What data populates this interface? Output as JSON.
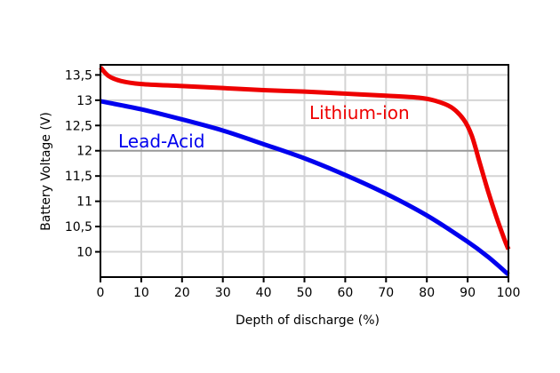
{
  "chart_data": {
    "type": "line",
    "title": "",
    "xlabel": "Depth of discharge (%)",
    "ylabel": "Battery Voltage (V)",
    "xlim": [
      0,
      100
    ],
    "ylim": [
      9.5,
      13.7
    ],
    "x_ticks": [
      0,
      10,
      20,
      30,
      40,
      50,
      60,
      70,
      80,
      90,
      100
    ],
    "x_tick_labels": [
      "0",
      "10",
      "20",
      "30",
      "40",
      "50",
      "60",
      "70",
      "80",
      "90",
      "100"
    ],
    "y_ticks": [
      10,
      10.5,
      11,
      11.5,
      12,
      12.5,
      13,
      13.5
    ],
    "y_tick_labels": [
      "10",
      "10,5",
      "11",
      "11,5",
      "12",
      "12,5",
      "13",
      "13,5"
    ],
    "grid": true,
    "reference_line": 12,
    "series": [
      {
        "name": "Lithium-ion",
        "color": "#ee0000",
        "x": [
          0,
          2,
          5,
          10,
          20,
          30,
          40,
          50,
          60,
          70,
          78,
          82,
          86,
          89,
          91,
          93,
          95,
          97,
          99,
          100
        ],
        "y": [
          13.65,
          13.48,
          13.38,
          13.32,
          13.28,
          13.24,
          13.2,
          13.17,
          13.13,
          13.09,
          13.05,
          12.99,
          12.86,
          12.62,
          12.3,
          11.75,
          11.2,
          10.7,
          10.25,
          10.05
        ]
      },
      {
        "name": "Lead-Acid",
        "color": "#0000ee",
        "x": [
          0,
          10,
          20,
          30,
          40,
          50,
          60,
          70,
          80,
          90,
          95,
          100
        ],
        "y": [
          12.98,
          12.82,
          12.62,
          12.4,
          12.13,
          11.85,
          11.52,
          11.15,
          10.72,
          10.2,
          9.9,
          9.55
        ]
      }
    ]
  }
}
